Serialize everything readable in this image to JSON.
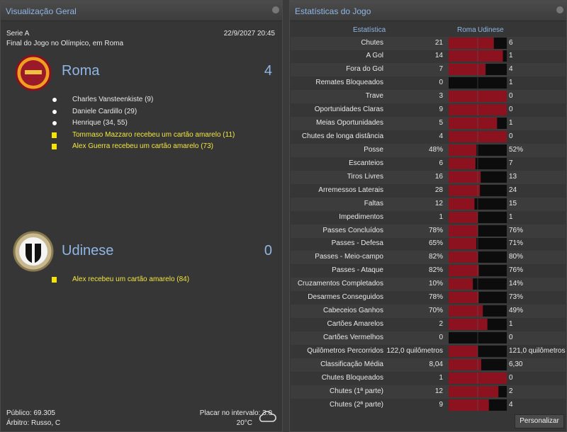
{
  "overview": {
    "title": "Visualização Geral",
    "competition": "Serie A",
    "datetime": "22/9/2027 20:45",
    "venue_line": "Final do Jogo no Olímpico, em Roma",
    "teams": [
      {
        "name": "Roma",
        "score": 4,
        "events": [
          {
            "type": "goal",
            "text": "Charles Vansteenkiste (9)"
          },
          {
            "type": "goal",
            "text": "Daniele Cardillo (29)"
          },
          {
            "type": "goal",
            "text": "Henrique (34, 55)"
          },
          {
            "type": "card",
            "text": "Tommaso Mazzaro recebeu um cartão amarelo (11)"
          },
          {
            "type": "card",
            "text": "Alex Guerra recebeu um cartão amarelo (73)"
          }
        ]
      },
      {
        "name": "Udinese",
        "score": 0,
        "events": [
          {
            "type": "card",
            "text": "Alex recebeu um cartão amarelo (84)"
          }
        ]
      }
    ],
    "attendance": "Público: 69.305",
    "referee": "Árbitro: Russo, C",
    "halftime": "Placar no intervalo: 3:0",
    "temperature": "20°C"
  },
  "stats": {
    "title": "Estatísticas do Jogo",
    "columns": [
      "Estatística",
      "Roma",
      "Udinese"
    ],
    "rows": [
      {
        "label": "Chutes",
        "home": 21,
        "away": 6
      },
      {
        "label": "A Gol",
        "home": 14,
        "away": 1
      },
      {
        "label": "Fora do Gol",
        "home": 7,
        "away": 4
      },
      {
        "label": "Remates Bloqueados",
        "home": 0,
        "away": 1
      },
      {
        "label": "Trave",
        "home": 3,
        "away": 0
      },
      {
        "label": "Oportunidades Claras",
        "home": 9,
        "away": 0
      },
      {
        "label": "Meias Oportunidades",
        "home": 5,
        "away": 1
      },
      {
        "label": "Chutes de longa distância",
        "home": 4,
        "away": 0
      },
      {
        "label": "Posse",
        "home": 48,
        "away": 52,
        "home_label": "48%",
        "away_label": "52%"
      },
      {
        "label": "Escanteios",
        "home": 6,
        "away": 7
      },
      {
        "label": "Tiros Livres",
        "home": 16,
        "away": 13
      },
      {
        "label": "Arremessos Laterais",
        "home": 28,
        "away": 24
      },
      {
        "label": "Faltas",
        "home": 12,
        "away": 15
      },
      {
        "label": "Impedimentos",
        "home": 1,
        "away": 1
      },
      {
        "label": "Passes Concluídos",
        "home": 78,
        "away": 76,
        "home_label": "78%",
        "away_label": "76%"
      },
      {
        "label": "Passes - Defesa",
        "home": 65,
        "away": 71,
        "home_label": "65%",
        "away_label": "71%"
      },
      {
        "label": "Passes - Meio-campo",
        "home": 82,
        "away": 80,
        "home_label": "82%",
        "away_label": "80%"
      },
      {
        "label": "Passes - Ataque",
        "home": 82,
        "away": 76,
        "home_label": "82%",
        "away_label": "76%"
      },
      {
        "label": "Cruzamentos Completados",
        "home": 10,
        "away": 14,
        "home_label": "10%",
        "away_label": "14%"
      },
      {
        "label": "Desarmes Conseguidos",
        "home": 78,
        "away": 73,
        "home_label": "78%",
        "away_label": "73%"
      },
      {
        "label": "Cabeceios Ganhos",
        "home": 70,
        "away": 49,
        "home_label": "70%",
        "away_label": "49%"
      },
      {
        "label": "Cartões Amarelos",
        "home": 2,
        "away": 1
      },
      {
        "label": "Cartões Vermelhos",
        "home": 0,
        "away": 0
      },
      {
        "label": "Quilômetros Percorridos",
        "home": 122.0,
        "away": 121.0,
        "home_label": "122,0 quilômetros",
        "away_label": "121,0 quilômetros"
      },
      {
        "label": "Classificação Média",
        "home": 8.04,
        "away": 6.3,
        "home_label": "8,04",
        "away_label": "6,30"
      },
      {
        "label": "Chutes Bloqueados",
        "home": 1,
        "away": 0
      },
      {
        "label": "Chutes (1ª parte)",
        "home": 12,
        "away": 2
      },
      {
        "label": "Chutes (2ª parte)",
        "home": 9,
        "away": 4
      }
    ]
  },
  "button": "Personalizar"
}
